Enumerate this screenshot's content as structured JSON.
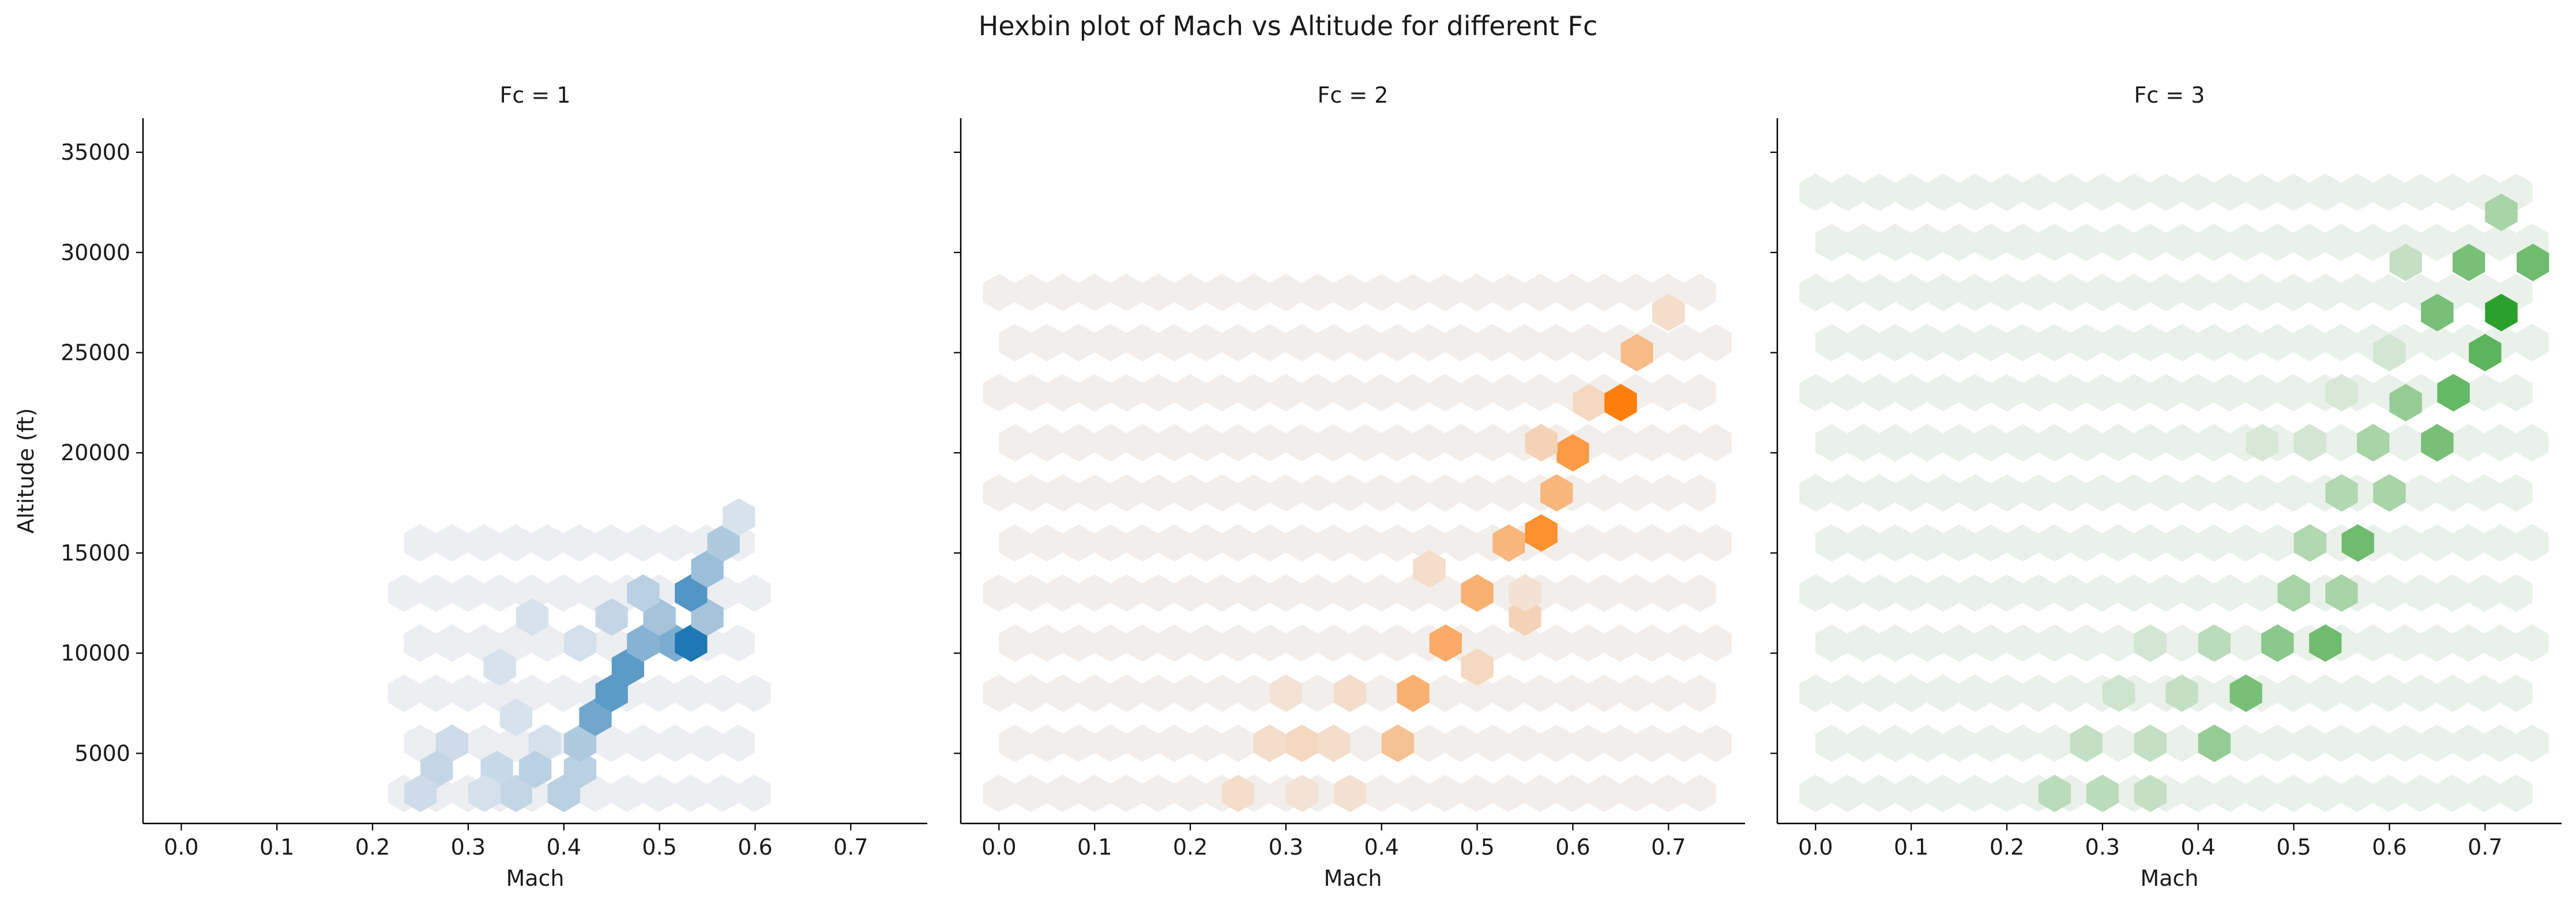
{
  "figure": {
    "title": "Hexbin plot of Mach vs Altitude for different Fc"
  },
  "chart_data": [
    {
      "type": "hexbin",
      "title": "Fc = 1",
      "xlabel": "Mach",
      "ylabel": "Altitude (ft)",
      "xlim": [
        -0.04,
        0.78
      ],
      "ylim": [
        1500,
        36700
      ],
      "xticks": [
        0.0,
        0.1,
        0.2,
        0.3,
        0.4,
        0.5,
        0.6,
        0.7
      ],
      "yticks": [
        5000,
        10000,
        15000,
        20000,
        25000,
        30000,
        35000
      ],
      "color": "#1f77b4",
      "base_color": "#edeef2",
      "grid": false,
      "bins": [
        {
          "x": 0.283,
          "y": 5500,
          "density": 0.15
        },
        {
          "x": 0.35,
          "y": 6800,
          "density": 0.1
        },
        {
          "x": 0.38,
          "y": 5500,
          "density": 0.12
        },
        {
          "x": 0.33,
          "y": 4200,
          "density": 0.18
        },
        {
          "x": 0.267,
          "y": 4200,
          "density": 0.2
        },
        {
          "x": 0.25,
          "y": 3000,
          "density": 0.15
        },
        {
          "x": 0.35,
          "y": 3000,
          "density": 0.2
        },
        {
          "x": 0.317,
          "y": 3000,
          "density": 0.12
        },
        {
          "x": 0.4,
          "y": 3000,
          "density": 0.25
        },
        {
          "x": 0.37,
          "y": 4200,
          "density": 0.25
        },
        {
          "x": 0.417,
          "y": 4200,
          "density": 0.25
        },
        {
          "x": 0.417,
          "y": 5500,
          "density": 0.3
        },
        {
          "x": 0.433,
          "y": 6800,
          "density": 0.6
        },
        {
          "x": 0.45,
          "y": 8000,
          "density": 0.7
        },
        {
          "x": 0.467,
          "y": 9300,
          "density": 0.7
        },
        {
          "x": 0.483,
          "y": 10500,
          "density": 0.5
        },
        {
          "x": 0.517,
          "y": 10500,
          "density": 0.55
        },
        {
          "x": 0.533,
          "y": 10500,
          "density": 1.0
        },
        {
          "x": 0.5,
          "y": 11800,
          "density": 0.35
        },
        {
          "x": 0.55,
          "y": 11800,
          "density": 0.35
        },
        {
          "x": 0.533,
          "y": 13000,
          "density": 0.75
        },
        {
          "x": 0.55,
          "y": 14200,
          "density": 0.4
        },
        {
          "x": 0.567,
          "y": 15500,
          "density": 0.3
        },
        {
          "x": 0.583,
          "y": 16800,
          "density": 0.1
        },
        {
          "x": 0.483,
          "y": 13000,
          "density": 0.25
        },
        {
          "x": 0.45,
          "y": 11800,
          "density": 0.2
        },
        {
          "x": 0.417,
          "y": 10500,
          "density": 0.12
        },
        {
          "x": 0.367,
          "y": 11800,
          "density": 0.1
        },
        {
          "x": 0.333,
          "y": 9300,
          "density": 0.1
        }
      ]
    },
    {
      "type": "hexbin",
      "title": "Fc = 2",
      "xlabel": "Mach",
      "ylabel": "",
      "xlim": [
        -0.04,
        0.78
      ],
      "ylim": [
        1500,
        36700
      ],
      "xticks": [
        0.0,
        0.1,
        0.2,
        0.3,
        0.4,
        0.5,
        0.6,
        0.7
      ],
      "yticks": [
        5000,
        10000,
        15000,
        20000,
        25000,
        30000,
        35000
      ],
      "color": "#ff7f0e",
      "base_color": "#f2eeec",
      "grid": false,
      "bins": [
        {
          "x": 0.25,
          "y": 3000,
          "density": 0.15
        },
        {
          "x": 0.317,
          "y": 3000,
          "density": 0.1
        },
        {
          "x": 0.367,
          "y": 3000,
          "density": 0.12
        },
        {
          "x": 0.283,
          "y": 5500,
          "density": 0.15
        },
        {
          "x": 0.317,
          "y": 5500,
          "density": 0.2
        },
        {
          "x": 0.35,
          "y": 5500,
          "density": 0.15
        },
        {
          "x": 0.417,
          "y": 5500,
          "density": 0.4
        },
        {
          "x": 0.3,
          "y": 8000,
          "density": 0.1
        },
        {
          "x": 0.367,
          "y": 8000,
          "density": 0.15
        },
        {
          "x": 0.433,
          "y": 8000,
          "density": 0.55
        },
        {
          "x": 0.467,
          "y": 10500,
          "density": 0.6
        },
        {
          "x": 0.5,
          "y": 9300,
          "density": 0.2
        },
        {
          "x": 0.5,
          "y": 13000,
          "density": 0.55
        },
        {
          "x": 0.55,
          "y": 11800,
          "density": 0.25
        },
        {
          "x": 0.533,
          "y": 15500,
          "density": 0.5
        },
        {
          "x": 0.567,
          "y": 16000,
          "density": 0.85
        },
        {
          "x": 0.583,
          "y": 18000,
          "density": 0.5
        },
        {
          "x": 0.6,
          "y": 20000,
          "density": 0.75
        },
        {
          "x": 0.567,
          "y": 20500,
          "density": 0.25
        },
        {
          "x": 0.617,
          "y": 22500,
          "density": 0.2
        },
        {
          "x": 0.65,
          "y": 22500,
          "density": 1.0
        },
        {
          "x": 0.667,
          "y": 25000,
          "density": 0.45
        },
        {
          "x": 0.7,
          "y": 27000,
          "density": 0.15
        },
        {
          "x": 0.45,
          "y": 14200,
          "density": 0.15
        },
        {
          "x": 0.55,
          "y": 13000,
          "density": 0.12
        }
      ]
    },
    {
      "type": "hexbin",
      "title": "Fc = 3",
      "xlabel": "Mach",
      "ylabel": "",
      "xlim": [
        -0.04,
        0.78
      ],
      "ylim": [
        1500,
        36700
      ],
      "xticks": [
        0.0,
        0.1,
        0.2,
        0.3,
        0.4,
        0.5,
        0.6,
        0.7
      ],
      "yticks": [
        5000,
        10000,
        15000,
        20000,
        25000,
        30000,
        35000
      ],
      "color": "#2ca02c",
      "base_color": "#eaf0ea",
      "grid": false,
      "bins": [
        {
          "x": 0.25,
          "y": 3000,
          "density": 0.25
        },
        {
          "x": 0.3,
          "y": 3000,
          "density": 0.25
        },
        {
          "x": 0.35,
          "y": 3000,
          "density": 0.2
        },
        {
          "x": 0.283,
          "y": 5500,
          "density": 0.2
        },
        {
          "x": 0.35,
          "y": 5500,
          "density": 0.2
        },
        {
          "x": 0.417,
          "y": 5500,
          "density": 0.45
        },
        {
          "x": 0.317,
          "y": 8000,
          "density": 0.15
        },
        {
          "x": 0.383,
          "y": 8000,
          "density": 0.2
        },
        {
          "x": 0.45,
          "y": 8000,
          "density": 0.6
        },
        {
          "x": 0.35,
          "y": 10500,
          "density": 0.12
        },
        {
          "x": 0.417,
          "y": 10500,
          "density": 0.25
        },
        {
          "x": 0.483,
          "y": 10500,
          "density": 0.5
        },
        {
          "x": 0.533,
          "y": 10500,
          "density": 0.65
        },
        {
          "x": 0.5,
          "y": 13000,
          "density": 0.35
        },
        {
          "x": 0.55,
          "y": 13000,
          "density": 0.35
        },
        {
          "x": 0.517,
          "y": 15500,
          "density": 0.3
        },
        {
          "x": 0.567,
          "y": 15500,
          "density": 0.65
        },
        {
          "x": 0.55,
          "y": 18000,
          "density": 0.3
        },
        {
          "x": 0.6,
          "y": 18000,
          "density": 0.35
        },
        {
          "x": 0.583,
          "y": 20500,
          "density": 0.35
        },
        {
          "x": 0.65,
          "y": 20500,
          "density": 0.6
        },
        {
          "x": 0.617,
          "y": 22500,
          "density": 0.45
        },
        {
          "x": 0.667,
          "y": 23000,
          "density": 0.7
        },
        {
          "x": 0.7,
          "y": 25000,
          "density": 0.75
        },
        {
          "x": 0.717,
          "y": 27000,
          "density": 1.0
        },
        {
          "x": 0.65,
          "y": 27000,
          "density": 0.6
        },
        {
          "x": 0.683,
          "y": 29500,
          "density": 0.6
        },
        {
          "x": 0.75,
          "y": 29500,
          "density": 0.65
        },
        {
          "x": 0.617,
          "y": 29500,
          "density": 0.2
        },
        {
          "x": 0.717,
          "y": 32000,
          "density": 0.35
        },
        {
          "x": 0.517,
          "y": 20500,
          "density": 0.12
        },
        {
          "x": 0.467,
          "y": 20500,
          "density": 0.1
        },
        {
          "x": 0.55,
          "y": 23000,
          "density": 0.1
        },
        {
          "x": 0.6,
          "y": 25000,
          "density": 0.12
        }
      ]
    }
  ]
}
